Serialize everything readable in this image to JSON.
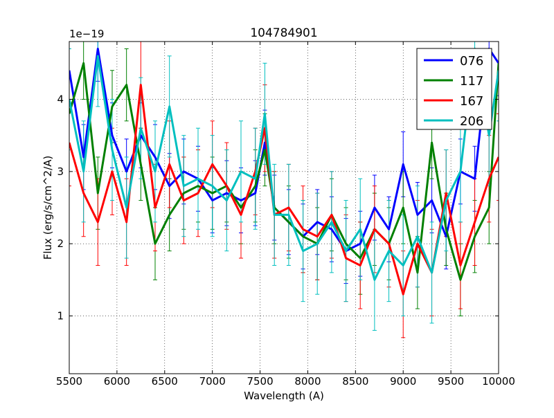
{
  "chart_data": {
    "type": "line",
    "title": "104784901",
    "xlabel": "Wavelength (A)",
    "ylabel": "Flux (erg/s/cm^2/A)",
    "y_offset_label": "1e−19",
    "xlim": [
      5500,
      10000
    ],
    "ylim": [
      0.2,
      4.8
    ],
    "x_ticks": [
      5500,
      6000,
      6500,
      7000,
      7500,
      8000,
      8500,
      9000,
      9500,
      10000
    ],
    "y_ticks": [
      1,
      2,
      3,
      4
    ],
    "grid": true,
    "legend_position": "top-right",
    "x": [
      5500,
      5650,
      5800,
      5950,
      6100,
      6250,
      6400,
      6550,
      6700,
      6850,
      7000,
      7150,
      7300,
      7450,
      7550,
      7650,
      7800,
      7950,
      8100,
      8250,
      8400,
      8550,
      8700,
      8850,
      9000,
      9150,
      9300,
      9450,
      9600,
      9750,
      9900,
      10000
    ],
    "series": [
      {
        "name": "076",
        "color": "#0000ff",
        "error": 0.45,
        "values": [
          4.4,
          3.2,
          4.7,
          3.5,
          3.0,
          3.5,
          3.2,
          2.8,
          3.0,
          2.9,
          2.6,
          2.7,
          2.6,
          2.7,
          3.4,
          2.5,
          2.3,
          2.1,
          2.3,
          2.2,
          1.9,
          2.0,
          2.5,
          2.2,
          3.1,
          2.4,
          2.6,
          2.1,
          3.0,
          2.9,
          4.7,
          4.5
        ]
      },
      {
        "name": "117",
        "color": "#008000",
        "error": 0.5,
        "values": [
          3.8,
          4.5,
          2.7,
          3.9,
          4.2,
          3.1,
          2.0,
          2.4,
          2.7,
          2.8,
          2.7,
          2.8,
          2.5,
          2.8,
          3.3,
          2.5,
          2.3,
          2.1,
          2.0,
          2.4,
          2.0,
          1.8,
          2.2,
          2.0,
          2.5,
          1.6,
          3.4,
          2.2,
          1.5,
          2.1,
          2.5,
          4.5
        ]
      },
      {
        "name": "167",
        "color": "#ff0000",
        "error": 0.6,
        "values": [
          3.4,
          2.7,
          2.3,
          3.0,
          2.3,
          4.2,
          2.5,
          3.1,
          2.6,
          2.7,
          3.1,
          2.8,
          2.4,
          3.0,
          3.6,
          2.4,
          2.5,
          2.2,
          2.1,
          2.4,
          1.8,
          1.7,
          2.2,
          2.0,
          1.3,
          2.0,
          1.6,
          2.7,
          1.7,
          2.3,
          2.9,
          3.2
        ]
      },
      {
        "name": "206",
        "color": "#00bfbf",
        "error": 0.7,
        "values": [
          4.0,
          3.0,
          4.6,
          3.3,
          2.5,
          3.6,
          3.0,
          3.9,
          2.8,
          2.9,
          2.8,
          2.6,
          3.0,
          2.9,
          3.8,
          2.4,
          2.4,
          1.9,
          2.0,
          2.3,
          1.9,
          2.2,
          1.5,
          1.9,
          1.7,
          2.1,
          1.6,
          2.6,
          3.0,
          4.7,
          3.5,
          4.4
        ]
      }
    ]
  }
}
